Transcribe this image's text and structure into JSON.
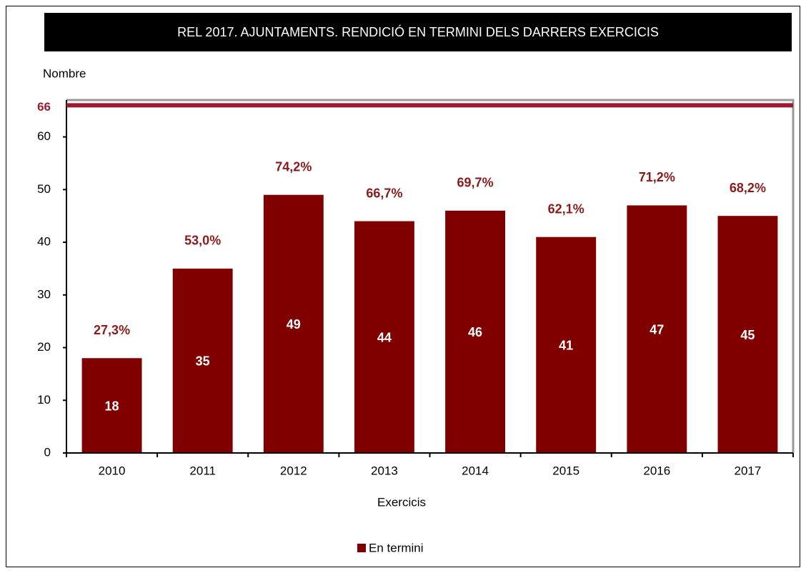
{
  "chart_data": {
    "type": "bar",
    "title": "REL 2017. AJUNTAMENTS. RENDICIÓ EN TERMINI DELS DARRERS EXERCICIS",
    "y_label": "Nombre",
    "x_label": "Exercicis",
    "categories": [
      "2010",
      "2011",
      "2012",
      "2013",
      "2014",
      "2015",
      "2016",
      "2017"
    ],
    "series": [
      {
        "name": "En termini",
        "color": "#800000",
        "values": [
          18,
          35,
          49,
          44,
          46,
          41,
          47,
          45
        ]
      }
    ],
    "percent_labels": [
      "27,3%",
      "53,0%",
      "74,2%",
      "66,7%",
      "69,7%",
      "62,1%",
      "71,2%",
      "68,2%"
    ],
    "reference_line": {
      "value": 66,
      "color": "#9b1b30"
    },
    "ylim": [
      0,
      67
    ],
    "yticks": [
      0,
      10,
      20,
      30,
      40,
      50,
      60
    ]
  }
}
